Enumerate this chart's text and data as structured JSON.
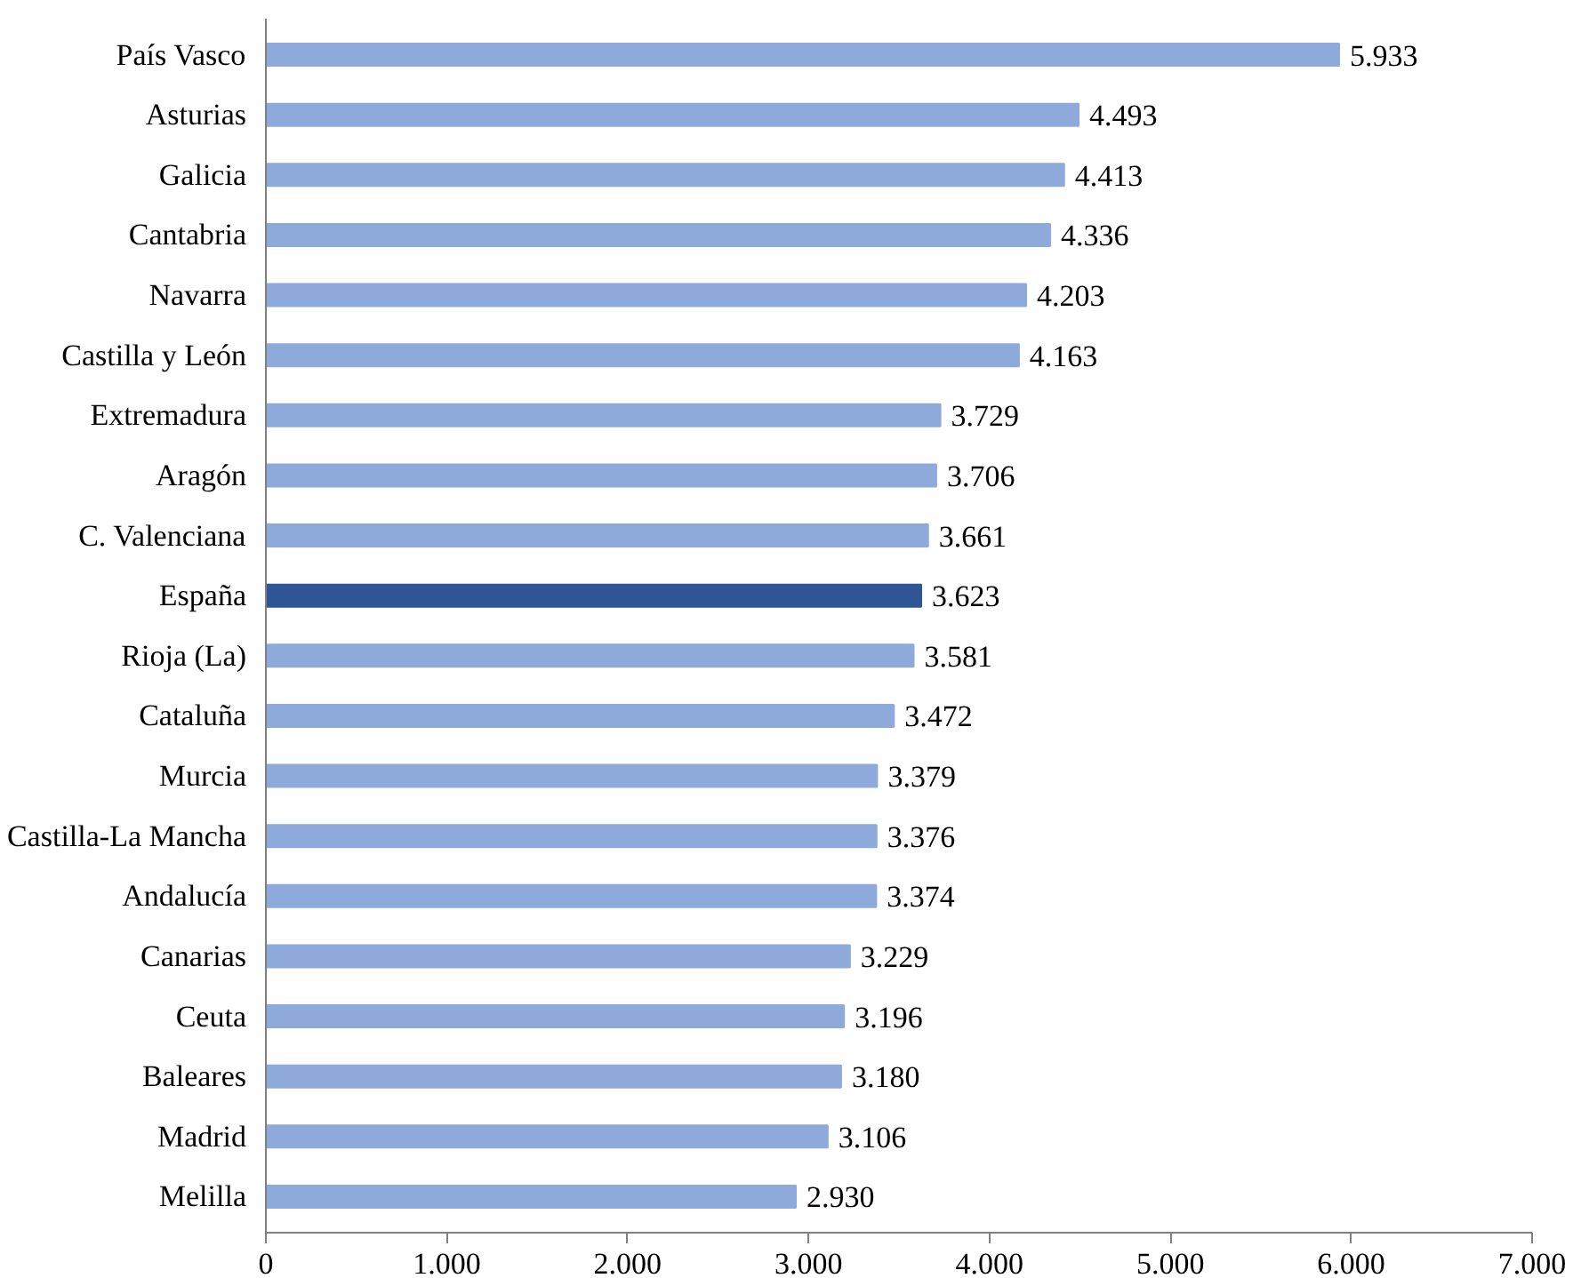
{
  "chart_data": {
    "type": "bar",
    "orientation": "horizontal",
    "categories": [
      "País Vasco",
      "Asturias",
      "Galicia",
      "Cantabria",
      "Navarra",
      "Castilla y León",
      "Extremadura",
      "Aragón",
      "C. Valenciana",
      "España",
      "Rioja (La)",
      "Cataluña",
      "Murcia",
      "Castilla-La Mancha",
      "Andalucía",
      "Canarias",
      "Ceuta",
      "Baleares",
      "Madrid",
      "Melilla"
    ],
    "values": [
      5933,
      4493,
      4413,
      4336,
      4203,
      4163,
      3729,
      3706,
      3661,
      3623,
      3581,
      3472,
      3379,
      3376,
      3374,
      3229,
      3196,
      3180,
      3106,
      2930
    ],
    "value_labels": [
      "5.933",
      "4.493",
      "4.413",
      "4.336",
      "4.203",
      "4.163",
      "3.729",
      "3.706",
      "3.661",
      "3.623",
      "3.581",
      "3.472",
      "3.379",
      "3.376",
      "3.374",
      "3.229",
      "3.196",
      "3.180",
      "3.106",
      "2.930"
    ],
    "colors": [
      "#8eaadb",
      "#8eaadb",
      "#8eaadb",
      "#8eaadb",
      "#8eaadb",
      "#8eaadb",
      "#8eaadb",
      "#8eaadb",
      "#8eaadb",
      "#2f5597",
      "#8eaadb",
      "#8eaadb",
      "#8eaadb",
      "#8eaadb",
      "#8eaadb",
      "#8eaadb",
      "#8eaadb",
      "#8eaadb",
      "#8eaadb",
      "#8eaadb"
    ],
    "xlim": [
      0,
      7000
    ],
    "xticks": [
      0,
      {
        "value": 1000,
        "label": "1.000"
      },
      {
        "value": 2000,
        "label": "2.000"
      },
      {
        "value": 3000,
        "label": "3.000"
      },
      {
        "value": 4000,
        "label": "4.000"
      },
      {
        "value": 5000,
        "label": "5.000"
      },
      {
        "value": 6000,
        "label": "6.000"
      },
      {
        "value": 7000,
        "label": "7.000"
      }
    ],
    "grid": false
  }
}
